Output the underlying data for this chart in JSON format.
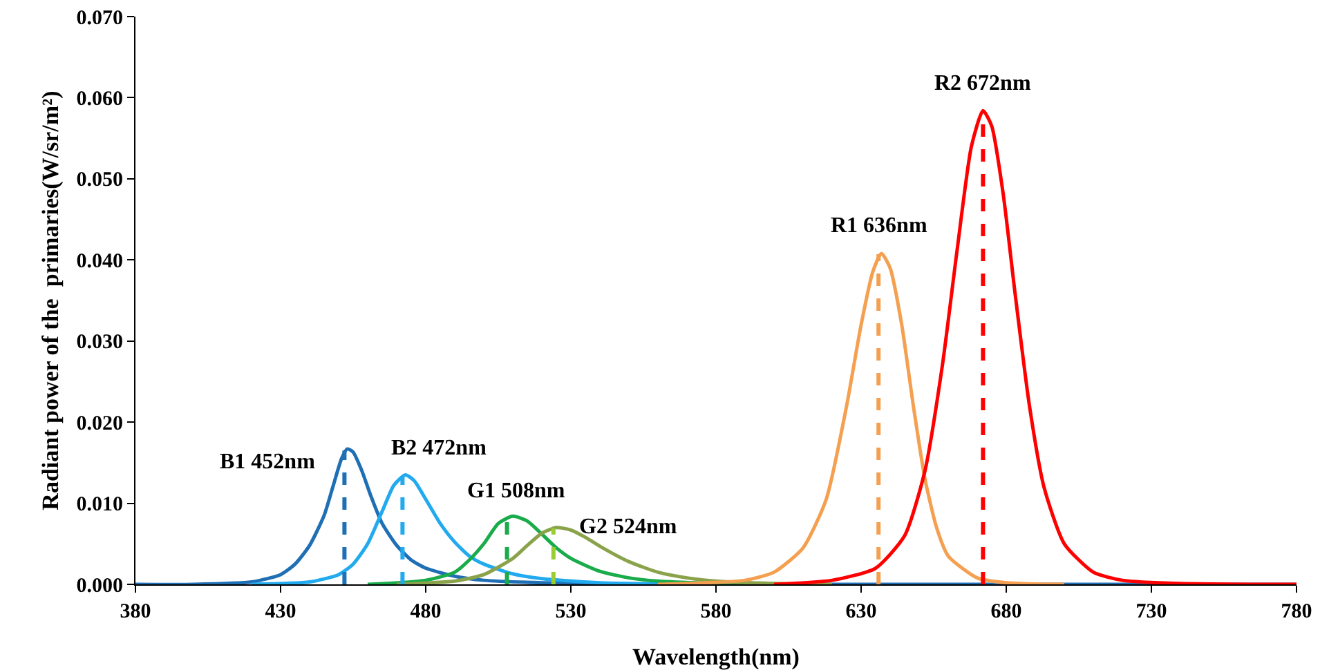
{
  "chart_data": {
    "type": "line",
    "xlabel": "Wavelength(nm)",
    "ylabel": "Radiant power of the  primaries(W/sr/m²)",
    "xlim": [
      380,
      780
    ],
    "xticks": [
      380,
      430,
      480,
      530,
      580,
      630,
      680,
      730,
      780
    ],
    "ylim": [
      0,
      0.07
    ],
    "yticks": [
      {
        "value": 0,
        "label": "0.000"
      },
      {
        "value": 0.01,
        "label": "0.010"
      },
      {
        "value": 0.02,
        "label": "0.020"
      },
      {
        "value": 0.03,
        "label": "0.030"
      },
      {
        "value": 0.04,
        "label": "0.040"
      },
      {
        "value": 0.05,
        "label": "0.050"
      },
      {
        "value": 0.06,
        "label": "0.060"
      },
      {
        "value": 0.07,
        "label": "0.070"
      }
    ],
    "grid": false,
    "marker": "none",
    "series": [
      {
        "color": "#1f6fb5",
        "line_style": "solid",
        "x": [
          380,
          400,
          420,
          430,
          435,
          440,
          445,
          448,
          451,
          453,
          455,
          458,
          461,
          465,
          470,
          475,
          480,
          490,
          500,
          520,
          560,
          780
        ],
        "values": [
          0,
          0,
          0.0003,
          0.0012,
          0.0025,
          0.0048,
          0.0085,
          0.012,
          0.0155,
          0.0167,
          0.0163,
          0.014,
          0.011,
          0.0075,
          0.0048,
          0.003,
          0.002,
          0.001,
          0.0005,
          0.0002,
          0,
          0
        ]
      },
      {
        "color": "#22aaee",
        "line_style": "solid",
        "x": [
          420,
          440,
          450,
          455,
          460,
          465,
          469,
          473,
          476,
          480,
          485,
          490,
          495,
          500,
          510,
          520,
          540,
          580
        ],
        "values": [
          0,
          0.0003,
          0.0012,
          0.0025,
          0.005,
          0.009,
          0.0122,
          0.0135,
          0.0128,
          0.0105,
          0.0075,
          0.0052,
          0.0035,
          0.0025,
          0.0013,
          0.0007,
          0.0002,
          0
        ]
      },
      {
        "color": "#1aab4a",
        "line_style": "solid",
        "x": [
          460,
          480,
          490,
          495,
          500,
          505,
          510,
          515,
          520,
          525,
          530,
          540,
          550,
          560,
          580,
          600
        ],
        "values": [
          0,
          0.0005,
          0.0015,
          0.003,
          0.005,
          0.0075,
          0.0084,
          0.0078,
          0.0062,
          0.0045,
          0.0032,
          0.0016,
          0.0008,
          0.0004,
          0.0001,
          0
        ]
      },
      {
        "color": "#8aa34a",
        "line_style": "solid",
        "x": [
          470,
          490,
          500,
          510,
          515,
          520,
          525,
          530,
          535,
          540,
          550,
          560,
          570,
          580,
          600,
          620
        ],
        "values": [
          0,
          0.0004,
          0.0012,
          0.0032,
          0.0048,
          0.0063,
          0.007,
          0.0067,
          0.0058,
          0.0047,
          0.0028,
          0.0015,
          0.0008,
          0.0004,
          0.0001,
          0
        ]
      },
      {
        "color": "#f4a050",
        "line_style": "solid",
        "x": [
          560,
          590,
          600,
          610,
          618,
          625,
          630,
          634,
          637,
          640,
          644,
          648,
          652,
          656,
          660,
          670,
          680,
          700
        ],
        "values": [
          0,
          0.0005,
          0.0015,
          0.0045,
          0.0105,
          0.022,
          0.032,
          0.0385,
          0.0408,
          0.039,
          0.032,
          0.022,
          0.013,
          0.007,
          0.0035,
          0.0008,
          0.0002,
          0
        ]
      },
      {
        "color": "#ff0000",
        "line_style": "solid",
        "x": [
          600,
          620,
          635,
          645,
          652,
          658,
          663,
          668,
          672,
          675,
          679,
          683,
          688,
          693,
          700,
          710,
          720,
          740,
          780
        ],
        "values": [
          0,
          0.0005,
          0.002,
          0.006,
          0.014,
          0.027,
          0.041,
          0.054,
          0.0584,
          0.0565,
          0.048,
          0.036,
          0.022,
          0.012,
          0.005,
          0.0015,
          0.0005,
          0.0001,
          0
        ]
      },
      {
        "color": "#1f6fb5",
        "line_style": "dashed",
        "x": [
          452,
          452
        ],
        "values": [
          0,
          0.0165
        ]
      },
      {
        "color": "#22aaee",
        "line_style": "dashed",
        "x": [
          472,
          472
        ],
        "values": [
          0,
          0.0133
        ]
      },
      {
        "color": "#1aab4a",
        "line_style": "dashed",
        "x": [
          508,
          508
        ],
        "values": [
          0,
          0.0083
        ]
      },
      {
        "color": "#9acd32",
        "line_style": "dashed",
        "x": [
          524,
          524
        ],
        "values": [
          0,
          0.0069
        ]
      },
      {
        "color": "#f4a050",
        "line_style": "dashed",
        "x": [
          636,
          636
        ],
        "values": [
          0,
          0.0407
        ]
      },
      {
        "color": "#ff0000",
        "line_style": "dashed",
        "x": [
          672,
          672
        ],
        "values": [
          0,
          0.0584
        ]
      }
    ],
    "annotations": [
      {
        "text": "B1 452nm",
        "x": 452,
        "y": 0.0167
      },
      {
        "text": "B2 472nm",
        "x": 472,
        "y": 0.0135
      },
      {
        "text": "G1 508nm",
        "x": 508,
        "y": 0.0084
      },
      {
        "text": "G2 524nm",
        "x": 524,
        "y": 0.007
      },
      {
        "text": "R1 636nm",
        "x": 636,
        "y": 0.0408
      },
      {
        "text": "R2 672nm",
        "x": 672,
        "y": 0.0584
      }
    ]
  }
}
